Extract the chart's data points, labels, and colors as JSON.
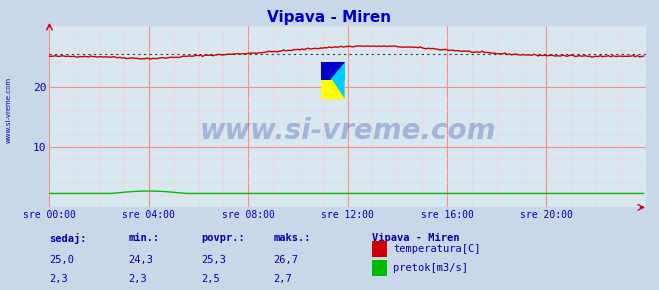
{
  "title": "Vipava - Miren",
  "title_color": "#0000cc",
  "bg_color": "#c8d8e8",
  "plot_bg_color": "#d8e8f0",
  "grid_color_major": "#ff8888",
  "grid_color_minor": "#ffcccc",
  "xlabel_color": "#0000aa",
  "ylabel_color": "#0000aa",
  "watermark_text": "www.si-vreme.com",
  "watermark_color": "#2244aa",
  "watermark_alpha": 0.3,
  "ylim": [
    0,
    30
  ],
  "xlim": [
    0,
    287
  ],
  "yticks": [
    10,
    20
  ],
  "xtick_labels": [
    "sre 00:00",
    "sre 04:00",
    "sre 08:00",
    "sre 12:00",
    "sre 16:00",
    "sre 20:00"
  ],
  "xtick_positions": [
    0,
    48,
    96,
    144,
    192,
    240
  ],
  "temp_color": "#cc0000",
  "flow_color": "#00bb00",
  "avg_line_color": "#333333",
  "avg_value_temp": 25.3,
  "avg_value_flow": 2.5,
  "temp_min": 24.3,
  "temp_max": 26.7,
  "flow_min": 2.3,
  "flow_max": 2.7,
  "legend_station": "Vipava - Miren",
  "legend_temp_label": "temperatura[C]",
  "legend_flow_label": "pretok[m3/s]",
  "footer_labels": [
    "sedaj:",
    "min.:",
    "povpr.:",
    "maks.:"
  ],
  "footer_temp_values": [
    "25,0",
    "24,3",
    "25,3",
    "26,7"
  ],
  "footer_flow_values": [
    "2,3",
    "2,3",
    "2,5",
    "2,7"
  ],
  "footer_color": "#0000aa",
  "sidebar_text": "www.si-vreme.com",
  "sidebar_color": "#0000aa",
  "logo_yellow": "#ffff00",
  "logo_cyan": "#00ccff",
  "logo_blue": "#0000cc"
}
